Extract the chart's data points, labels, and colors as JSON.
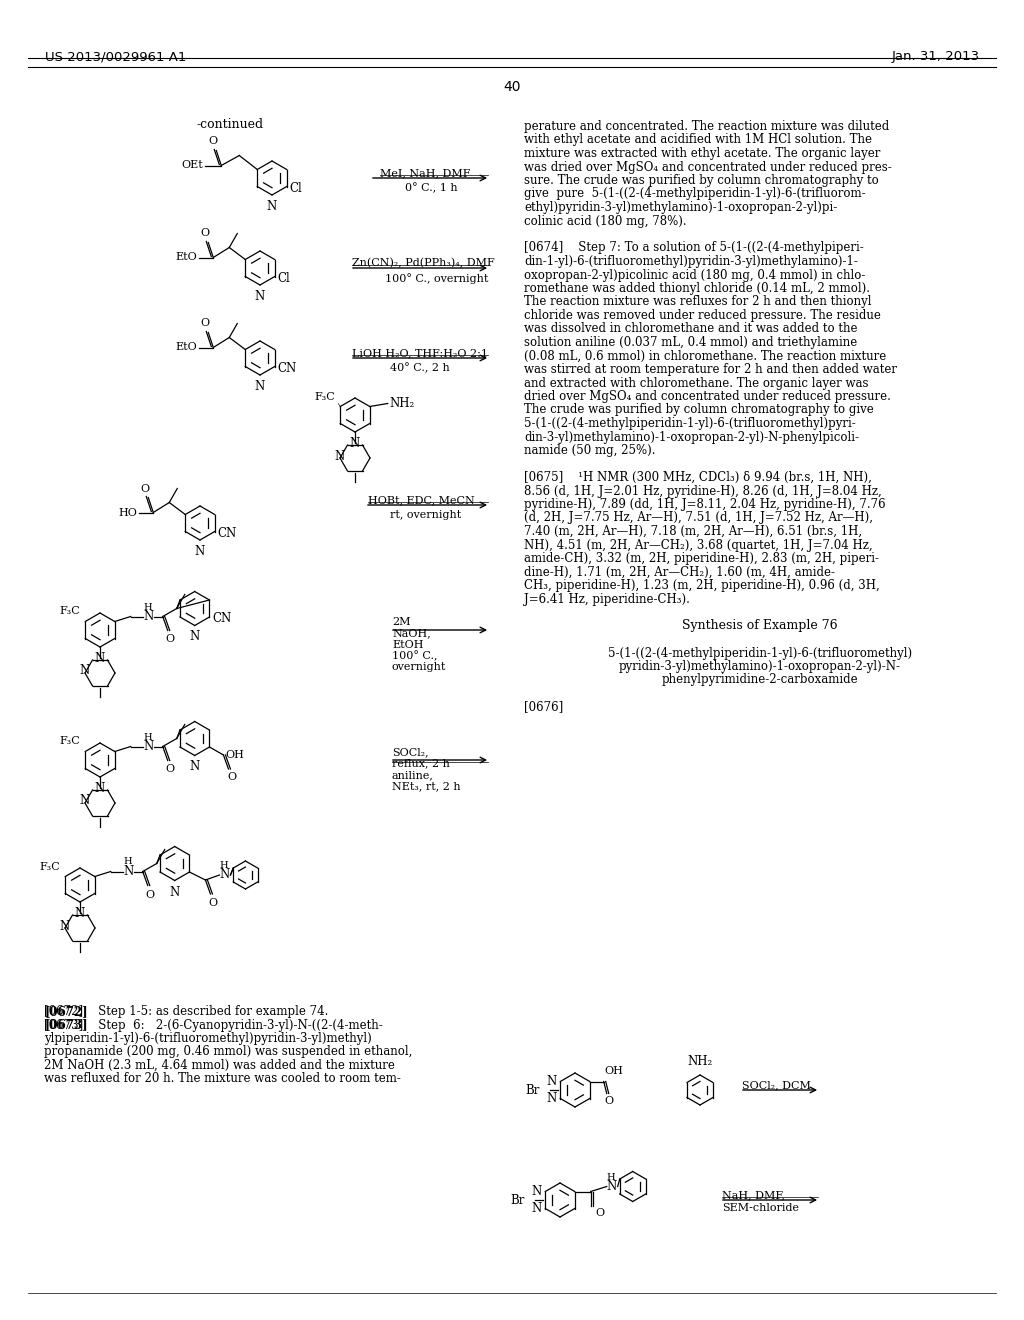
{
  "page_header_left": "US 2013/0029961 A1",
  "page_header_right": "Jan. 31, 2013",
  "page_number": "40",
  "background_color": "#ffffff",
  "right_col_lines": [
    "perature and concentrated. The reaction mixture was diluted",
    "with ethyl acetate and acidified with 1M HCl solution. The",
    "mixture was extracted with ethyl acetate. The organic layer",
    "was dried over MgSO₄ and concentrated under reduced pres-",
    "sure. The crude was purified by column chromatography to",
    "give  pure  5-(1-((2-(4-methylpiperidin-1-yl)-6-(trifluorom-",
    "ethyl)pyridin-3-yl)methylamino)-1-oxopropan-2-yl)pi-",
    "colinic acid (180 mg, 78%).",
    "",
    "[0674]    Step 7: To a solution of 5-(1-((2-(4-methylpiperi-",
    "din-1-yl)-6-(trifluoromethyl)pyridin-3-yl)methylamino)-1-",
    "oxopropan-2-yl)picolinic acid (180 mg, 0.4 mmol) in chlo-",
    "romethane was added thionyl chloride (0.14 mL, 2 mmol).",
    "The reaction mixture was refluxes for 2 h and then thionyl",
    "chloride was removed under reduced pressure. The residue",
    "was dissolved in chloromethane and it was added to the",
    "solution aniline (0.037 mL, 0.4 mmol) and triethylamine",
    "(0.08 mL, 0.6 mmol) in chloromethane. The reaction mixture",
    "was stirred at room temperature for 2 h and then added water",
    "and extracted with chloromethane. The organic layer was",
    "dried over MgSO₄ and concentrated under reduced pressure.",
    "The crude was purified by column chromatography to give",
    "5-(1-((2-(4-methylpiperidin-1-yl)-6-(trifluoromethyl)pyri-",
    "din-3-yl)methylamino)-1-oxopropan-2-yl)-N-phenylpicoli-",
    "namide (50 mg, 25%).",
    "",
    "[0675]    ¹H NMR (300 MHz, CDCl₃) δ 9.94 (br.s, 1H, NH),",
    "8.56 (d, 1H, J=2.01 Hz, pyridine-H), 8.26 (d, 1H, J=8.04 Hz,",
    "pyridine-H), 7.89 (dd, 1H, J=8.11, 2.04 Hz, pyridine-H), 7.76",
    "(d, 2H, J=7.75 Hz, Ar—H), 7.51 (d, 1H, J=7.52 Hz, Ar—H),",
    "7.40 (m, 2H, Ar—H), 7.18 (m, 2H, Ar—H), 6.51 (br.s, 1H,",
    "NH), 4.51 (m, 2H, Ar—CH₂), 3.68 (quartet, 1H, J=7.04 Hz,",
    "amide-CH), 3.32 (m, 2H, piperidine-H), 2.83 (m, 2H, piperi-",
    "dine-H), 1.71 (m, 2H, Ar—CH₂), 1.60 (m, 4H, amide-",
    "CH₃, piperidine-H), 1.23 (m, 2H, piperidine-H), 0.96 (d, 3H,",
    "J=6.41 Hz, piperidine-CH₃).",
    "",
    "Synthesis of Example 76",
    "",
    "5-(1-((2-(4-methylpiperidin-1-yl)-6-(trifluoromethyl)",
    "pyridin-3-yl)methylamino)-1-oxopropan-2-yl)-N-",
    "phenylpyrimidine-2-carboxamide",
    "",
    "[0676]"
  ],
  "bottom_left_lines": [
    "[0672]    Step 1-5: as described for example 74.",
    "[0673]    Step  6:   2-(6-Cyanopyridin-3-yl)-N-((2-(4-meth-",
    "ylpiperidin-1-yl)-6-(trifluoromethyl)pyridin-3-yl)methyl)",
    "propanamide (200 mg, 0.46 mmol) was suspended in ethanol,",
    "2M NaOH (2.3 mL, 4.64 mmol) was added and the mixture",
    "was refluxed for 20 h. The mixture was cooled to room tem-"
  ]
}
